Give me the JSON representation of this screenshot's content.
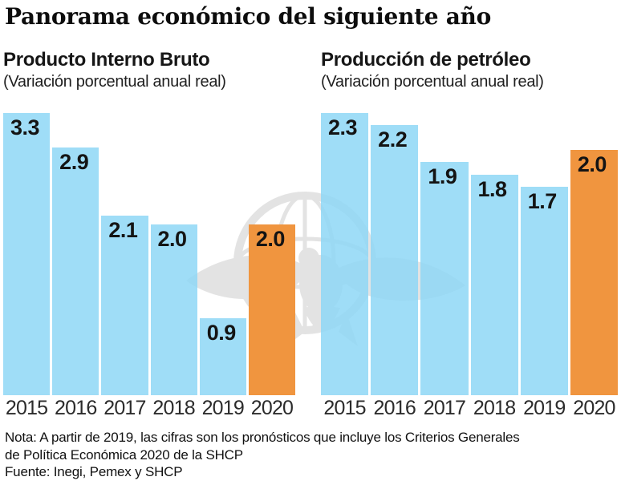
{
  "title": "Panorama económico del siguiente año",
  "colors": {
    "bar_blue": "#8DD7F5",
    "highlight_orange": "#F0953F"
  },
  "chart_data": [
    {
      "type": "bar",
      "title": "Producto Interno Bruto",
      "subtitle": "(Variación porcentual anual real)",
      "categories": [
        "2015",
        "2016",
        "2017",
        "2018",
        "2019",
        "2020"
      ],
      "values": [
        3.3,
        2.9,
        2.1,
        2.0,
        0.9,
        2.0
      ],
      "highlight_index": 5,
      "bar_color": "#8DD7F5",
      "highlight_color": "#F0953F",
      "value_labels": true,
      "axis": "none",
      "ylim": [
        0,
        3.3
      ],
      "legend": "none",
      "grid": false
    },
    {
      "type": "bar",
      "title": "Producción de petróleo",
      "subtitle": "(Variación porcentual anual real)",
      "categories": [
        "2015",
        "2016",
        "2017",
        "2018",
        "2019",
        "2020"
      ],
      "values": [
        2.3,
        2.2,
        1.9,
        1.8,
        1.7,
        2.0
      ],
      "highlight_index": 5,
      "bar_color": "#8DD7F5",
      "highlight_color": "#F0953F",
      "value_labels": true,
      "axis": "none",
      "ylim": [
        0,
        2.3
      ],
      "legend": "none",
      "grid": false
    }
  ],
  "notes": [
    "Nota: A partir de 2019, las cifras son los pronósticos que incluye los Criterios Generales",
    "de Política Económica 2020 de la SHCP",
    "Fuente: Inegi, Pemex y SHCP"
  ]
}
